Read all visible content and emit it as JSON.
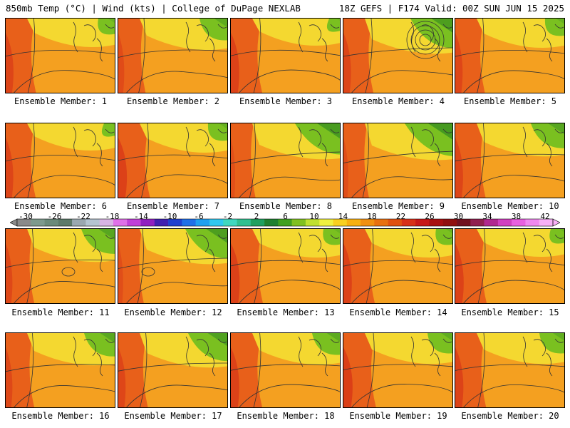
{
  "header": {
    "left": "850mb Temp (°C) | Wind (kts) | College of DuPage NEXLAB",
    "right": "18Z GEFS | F174 Valid: 00Z SUN JUN 15 2025"
  },
  "members": [
    {
      "label": "Ensemble Member: 1",
      "warmth": 0.72,
      "green": 0.25
    },
    {
      "label": "Ensemble Member: 2",
      "warmth": 0.55,
      "green": 0.45
    },
    {
      "label": "Ensemble Member: 3",
      "warmth": 0.78,
      "green": 0.15
    },
    {
      "label": "Ensemble Member: 4",
      "warmth": 0.7,
      "green": 0.7
    },
    {
      "label": "Ensemble Member: 5",
      "warmth": 0.68,
      "green": 0.3
    },
    {
      "label": "Ensemble Member: 6",
      "warmth": 0.7,
      "green": 0.15
    },
    {
      "label": "Ensemble Member: 7",
      "warmth": 0.8,
      "green": 0.3
    },
    {
      "label": "Ensemble Member: 8",
      "warmth": 0.4,
      "green": 0.75
    },
    {
      "label": "Ensemble Member: 9",
      "warmth": 0.45,
      "green": 0.8
    },
    {
      "label": "Ensemble Member: 10",
      "warmth": 0.72,
      "green": 0.55
    },
    {
      "label": "Ensemble Member: 11",
      "warmth": 0.62,
      "green": 0.55
    },
    {
      "label": "Ensemble Member: 12",
      "warmth": 0.45,
      "green": 0.7
    },
    {
      "label": "Ensemble Member: 13",
      "warmth": 0.82,
      "green": 0.25
    },
    {
      "label": "Ensemble Member: 14",
      "warmth": 0.78,
      "green": 0.25
    },
    {
      "label": "Ensemble Member: 15",
      "warmth": 0.78,
      "green": 0.2
    },
    {
      "label": "Ensemble Member: 16",
      "warmth": 0.62,
      "green": 0.5
    },
    {
      "label": "Ensemble Member: 17",
      "warmth": 0.68,
      "green": 0.65
    },
    {
      "label": "Ensemble Member: 18",
      "warmth": 0.78,
      "green": 0.45
    },
    {
      "label": "Ensemble Member: 19",
      "warmth": 0.85,
      "green": 0.4
    },
    {
      "label": "Ensemble Member: 20",
      "warmth": 0.75,
      "green": 0.4
    }
  ],
  "colorbar": {
    "labels": [
      "-30",
      "-26",
      "-22",
      "-18",
      "-14",
      "-10",
      "-6",
      "-2",
      "2",
      "6",
      "10",
      "14",
      "18",
      "22",
      "26",
      "30",
      "34",
      "38",
      "42"
    ],
    "colors": [
      "#8a8a8a",
      "#7d9a8d",
      "#6a8a7a",
      "#5c7a6a",
      "#9aa8b0",
      "#b4c4d0",
      "#d8b4e4",
      "#e070e8",
      "#c040d8",
      "#9020c0",
      "#4020b0",
      "#2040d0",
      "#2070e8",
      "#20a0f0",
      "#30c8f0",
      "#40d8c0",
      "#30c090",
      "#20a060",
      "#208030",
      "#40a020",
      "#80c020",
      "#c0e030",
      "#f0f040",
      "#f8d020",
      "#f8b010",
      "#f09010",
      "#e87010",
      "#e05010",
      "#d83018",
      "#c81818",
      "#a81010",
      "#901010",
      "#701020",
      "#902050",
      "#b02890",
      "#d040c0",
      "#e860e0",
      "#f088f0",
      "#f8b0f8"
    ]
  }
}
